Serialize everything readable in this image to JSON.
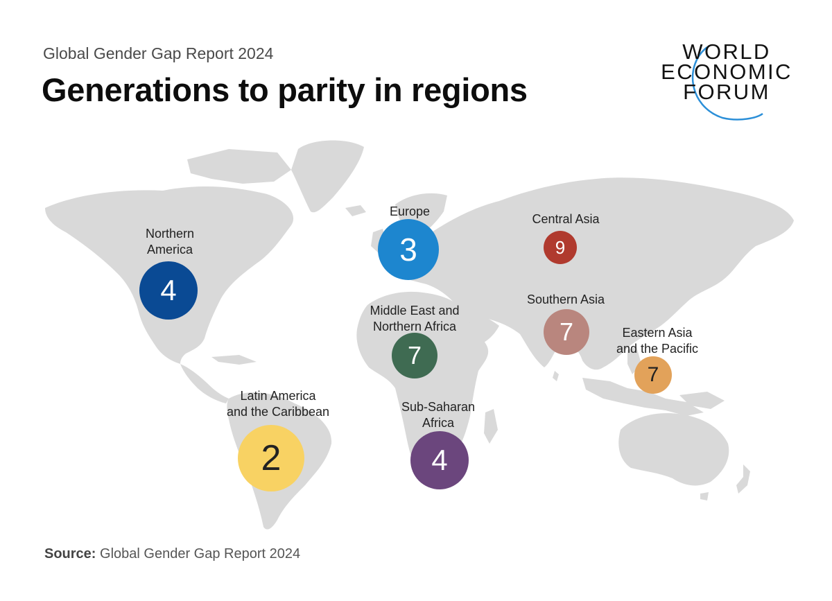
{
  "header": {
    "subtitle": "Global Gender Gap Report 2024",
    "title": "Generations to parity in regions"
  },
  "logo": {
    "line1": "WORLD",
    "line2": "ECONOMIC",
    "line3": "FORUM",
    "swoosh_color": "#2b8fd8"
  },
  "map": {
    "land_color": "#d9d9d9",
    "regions": [
      {
        "id": "northern-america",
        "label_line1": "Northern",
        "label_line2": "America",
        "generations": "4",
        "color": "#0a4a94"
      },
      {
        "id": "europe",
        "label_line1": "Europe",
        "label_line2": "",
        "generations": "3",
        "color": "#1d86cf"
      },
      {
        "id": "central-asia",
        "label_line1": "Central Asia",
        "label_line2": "",
        "generations": "9",
        "color": "#b03a2e"
      },
      {
        "id": "southern-asia",
        "label_line1": "Southern Asia",
        "label_line2": "",
        "generations": "7",
        "color": "#b9867e"
      },
      {
        "id": "middle-east",
        "label_line1": "Middle East and",
        "label_line2": "Northern Africa",
        "generations": "7",
        "color": "#3f6b52"
      },
      {
        "id": "eastern-asia",
        "label_line1": "Eastern Asia",
        "label_line2": "and the Pacific",
        "generations": "7",
        "color": "#e2a25a"
      },
      {
        "id": "latin-america",
        "label_line1": "Latin America",
        "label_line2": "and the Caribbean",
        "generations": "2",
        "color": "#f8d263"
      },
      {
        "id": "sub-saharan",
        "label_line1": "Sub-Saharan",
        "label_line2": "Africa",
        "generations": "4",
        "color": "#6b467d"
      }
    ]
  },
  "footer": {
    "source_label": "Source:",
    "source_text": "Global Gender Gap Report 2024"
  }
}
